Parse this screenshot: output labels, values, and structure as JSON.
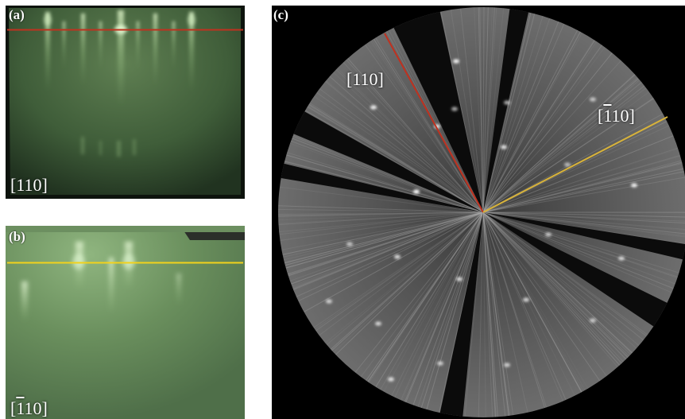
{
  "figure": {
    "panel_a": {
      "label": "(a)",
      "direction": "[110]",
      "line_color": "#c0311f"
    },
    "panel_b": {
      "label": "(b)",
      "direction_prefix": "[",
      "direction_bar": "1",
      "direction_suffix": "10]",
      "line_color": "#f2d21c"
    },
    "panel_c": {
      "label": "(c)",
      "direction_1": "[110]",
      "direction_2_prefix": "[",
      "direction_2_bar": "1",
      "direction_2_suffix": "10]",
      "line1_color": "#c0311f",
      "line2_color": "#d8b33a"
    }
  }
}
